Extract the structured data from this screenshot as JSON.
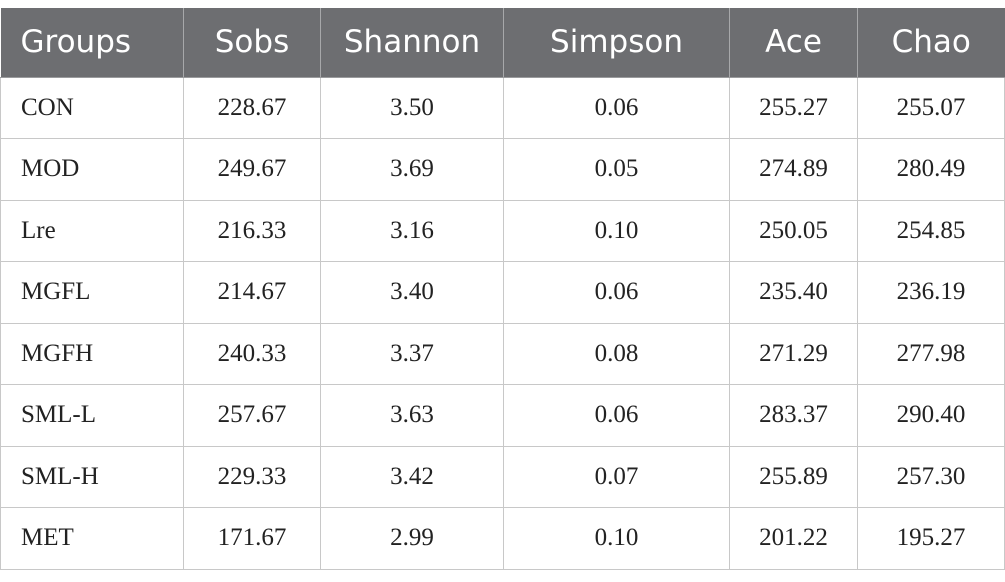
{
  "table": {
    "headers": [
      "Groups",
      "Sobs",
      "Shannon",
      "Simpson",
      "Ace",
      "Chao"
    ],
    "rows": [
      [
        "CON",
        "228.67",
        "3.50",
        "0.06",
        "255.27",
        "255.07"
      ],
      [
        "MOD",
        "249.67",
        "3.69",
        "0.05",
        "274.89",
        "280.49"
      ],
      [
        "Lre",
        "216.33",
        "3.16",
        "0.10",
        "250.05",
        "254.85"
      ],
      [
        "MGFL",
        "214.67",
        "3.40",
        "0.06",
        "235.40",
        "236.19"
      ],
      [
        "MGFH",
        "240.33",
        "3.37",
        "0.08",
        "271.29",
        "277.98"
      ],
      [
        "SML-L",
        "257.67",
        "3.63",
        "0.06",
        "283.37",
        "290.40"
      ],
      [
        "SML-H",
        "229.33",
        "3.42",
        "0.07",
        "255.89",
        "257.30"
      ],
      [
        "MET",
        "171.67",
        "2.99",
        "0.10",
        "201.22",
        "195.27"
      ]
    ]
  },
  "colors": {
    "header_background": "#6d6e71",
    "header_text": "#ffffff",
    "cell_border": "#c8c8c8"
  }
}
